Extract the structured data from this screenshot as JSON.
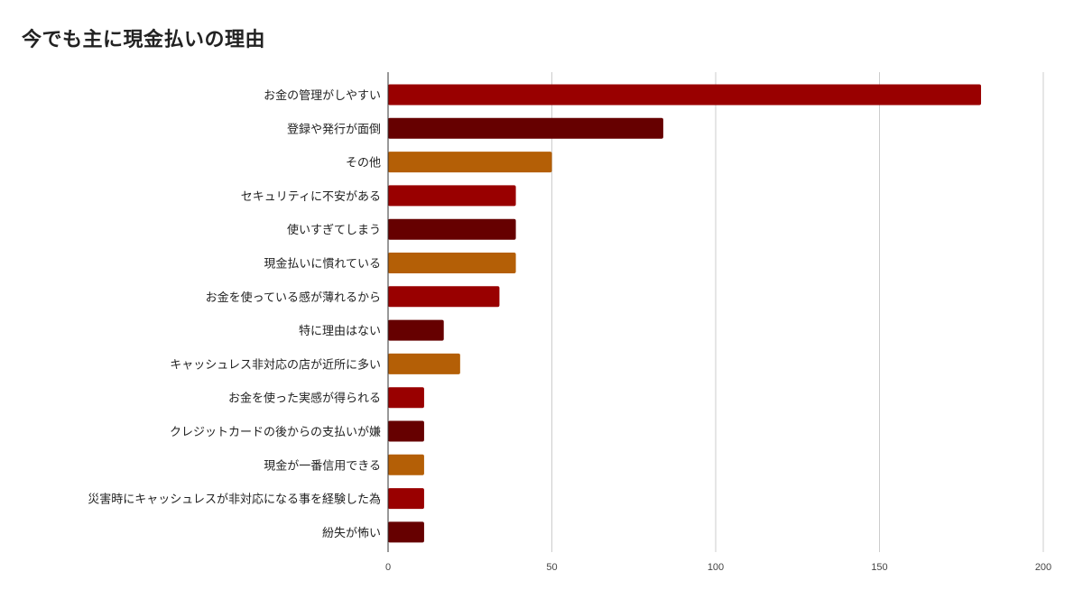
{
  "chart_data": {
    "type": "bar",
    "orientation": "horizontal",
    "title": "今でも主に現金払いの理由",
    "categories": [
      "お金の管理がしやすい",
      "登録や発行が面倒",
      "その他",
      "セキュリティに不安がある",
      "使いすぎてしまう",
      "現金払いに慣れている",
      "お金を使っている感が薄れるから",
      "特に理由はない",
      "キャッシュレス非対応の店が近所に多い",
      "お金を使った実感が得られる",
      "クレジットカードの後からの支払いが嫌",
      "現金が一番信用できる",
      "災害時にキャッシュレスが非対応になる事を経験した為",
      "紛失が怖い"
    ],
    "values": [
      181,
      84,
      50,
      39,
      39,
      39,
      34,
      17,
      22,
      11,
      11,
      11,
      11,
      11
    ],
    "bar_colors": [
      "#990000",
      "#660000",
      "#b45f06"
    ],
    "xlim": [
      0,
      200
    ],
    "xticks": [
      "0",
      "50",
      "100",
      "150",
      "200"
    ],
    "grid": true,
    "legend": "none",
    "xlabel": "",
    "ylabel": ""
  }
}
